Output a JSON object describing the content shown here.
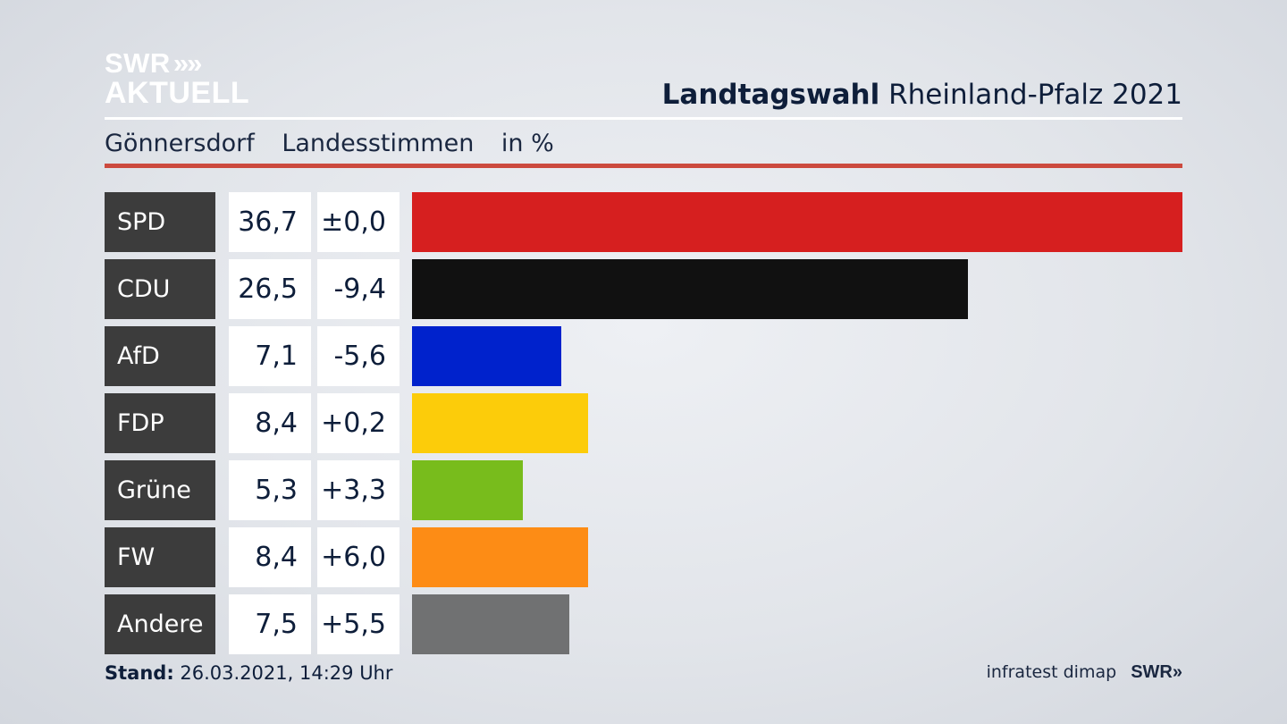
{
  "logo": {
    "line1": "SWR",
    "chevrons": "»",
    "line2": "AKTUELL"
  },
  "header": {
    "title_bold": "Landtagswahl",
    "title_rest": "Rheinland-Pfalz 2021"
  },
  "subtitle": {
    "place": "Gönnersdorf",
    "vote_type": "Landesstimmen",
    "unit": "in %"
  },
  "footer": {
    "stand_label": "Stand:",
    "stand_value": "26.03.2021, 14:29 Uhr",
    "source": "infratest dimap",
    "source_logo": "SWR»"
  },
  "colors": {
    "header_rule": "#ffffff",
    "accent_rule": "#cc4a3e",
    "party_box": "#3c3c3c"
  },
  "chart_data": {
    "type": "bar",
    "title": "Landtagswahl Rheinland-Pfalz 2021",
    "categories": [
      "SPD",
      "CDU",
      "AfD",
      "FDP",
      "Grüne",
      "FW",
      "Andere"
    ],
    "values": [
      36.7,
      26.5,
      7.1,
      8.4,
      5.3,
      8.4,
      7.5
    ],
    "value_labels": [
      "36,7",
      "26,5",
      "7,1",
      "8,4",
      "5,3",
      "8,4",
      "7,5"
    ],
    "diff_labels": [
      "±0,0",
      "-9,4",
      "-5,6",
      "+0,2",
      "+3,3",
      "+6,0",
      "+5,5"
    ],
    "colors": [
      "#d61f1f",
      "#111111",
      "#0022cc",
      "#fccc0a",
      "#78bc1c",
      "#fd8c15",
      "#707172"
    ],
    "xlim": [
      0,
      36.7
    ]
  }
}
